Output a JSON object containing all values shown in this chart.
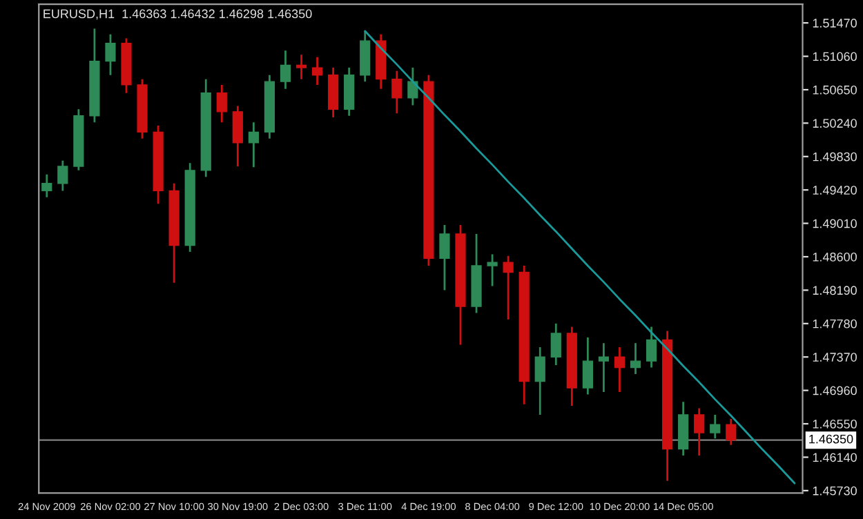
{
  "chart_data": {
    "type": "candlestick",
    "title": "EURUSD,H1  1.46363 1.46432 1.46298 1.46350",
    "categories": [
      "24 Nov 2009",
      null,
      null,
      null,
      "26 Nov 02:00",
      null,
      null,
      null,
      "27 Nov 10:00",
      null,
      null,
      null,
      "30 Nov 19:00",
      null,
      null,
      null,
      "2 Dec 03:00",
      null,
      null,
      null,
      "3 Dec 11:00",
      null,
      null,
      null,
      "4 Dec 19:00",
      null,
      null,
      null,
      "8 Dec 04:00",
      null,
      null,
      null,
      "9 Dec 12:00",
      null,
      null,
      null,
      "10 Dec 20:00",
      null,
      null,
      null,
      "14 Dec 05:00",
      null,
      null,
      null,
      null,
      null,
      null,
      null
    ],
    "ohlc": [
      [
        1.4941,
        1.4961,
        1.4933,
        1.495
      ],
      [
        1.495,
        1.4978,
        1.4941,
        1.4971
      ],
      [
        1.4971,
        1.5041,
        1.4966,
        1.5033
      ],
      [
        1.5033,
        1.514,
        1.5025,
        1.51
      ],
      [
        1.51,
        1.5133,
        1.5083,
        1.5122
      ],
      [
        1.5122,
        1.5128,
        1.5061,
        1.5071
      ],
      [
        1.5071,
        1.5078,
        1.5005,
        1.5013
      ],
      [
        1.5013,
        1.5021,
        1.4925,
        1.4941
      ],
      [
        1.4941,
        1.495,
        1.4828,
        1.4874
      ],
      [
        1.4874,
        1.4975,
        1.4866,
        1.4966
      ],
      [
        1.4966,
        1.5078,
        1.4958,
        1.5061
      ],
      [
        1.5061,
        1.5071,
        1.5025,
        1.5038
      ],
      [
        1.5038,
        1.5045,
        1.4971,
        1.5
      ],
      [
        1.5,
        1.5025,
        1.497,
        1.5013
      ],
      [
        1.5013,
        1.5083,
        1.5005,
        1.5075
      ],
      [
        1.5075,
        1.5113,
        1.5066,
        1.5095
      ],
      [
        1.5095,
        1.5108,
        1.5078,
        1.5092
      ],
      [
        1.5092,
        1.5105,
        1.5071,
        1.5083
      ],
      [
        1.5083,
        1.5092,
        1.5031,
        1.5041
      ],
      [
        1.5041,
        1.5092,
        1.5033,
        1.5083
      ],
      [
        1.5083,
        1.5137,
        1.5075,
        1.5125
      ],
      [
        1.5125,
        1.5133,
        1.5066,
        1.5078
      ],
      [
        1.5078,
        1.5088,
        1.5036,
        1.5055
      ],
      [
        1.5055,
        1.5092,
        1.5046,
        1.5075
      ],
      [
        1.5075,
        1.5083,
        1.4849,
        1.4858
      ],
      [
        1.4858,
        1.4899,
        1.4819,
        1.4888
      ],
      [
        1.4888,
        1.4899,
        1.4752,
        1.4799
      ],
      [
        1.4799,
        1.4888,
        1.4791,
        1.4849
      ],
      [
        1.4849,
        1.4863,
        1.4824,
        1.4853
      ],
      [
        1.4853,
        1.4861,
        1.4783,
        1.4841
      ],
      [
        1.4841,
        1.4849,
        1.4679,
        1.4707
      ],
      [
        1.4707,
        1.4749,
        1.4666,
        1.4737
      ],
      [
        1.4737,
        1.4778,
        1.4727,
        1.4766
      ],
      [
        1.4766,
        1.4774,
        1.4677,
        1.4699
      ],
      [
        1.4699,
        1.4761,
        1.4691,
        1.4732
      ],
      [
        1.4732,
        1.4754,
        1.4694,
        1.4737
      ],
      [
        1.4737,
        1.4749,
        1.4694,
        1.4724
      ],
      [
        1.4724,
        1.4754,
        1.4716,
        1.4732
      ],
      [
        1.4732,
        1.4774,
        1.4724,
        1.4758
      ],
      [
        1.4758,
        1.4769,
        1.4585,
        1.4624
      ],
      [
        1.4624,
        1.4682,
        1.4616,
        1.4666
      ],
      [
        1.4666,
        1.4674,
        1.4616,
        1.4644
      ],
      [
        1.4644,
        1.4666,
        1.4637,
        1.4654
      ],
      [
        1.4654,
        1.4661,
        1.4629,
        1.4635
      ],
      null,
      null,
      null,
      null
    ],
    "colors": [
      "#2e8b57",
      "#2e8b57",
      "#2e8b57",
      "#2e8b57",
      "#2e8b57",
      "#d01010",
      "#d01010",
      "#d01010",
      "#d01010",
      "#2e8b57",
      "#2e8b57",
      "#d01010",
      "#d01010",
      "#2e8b57",
      "#2e8b57",
      "#2e8b57",
      "#d01010",
      "#d01010",
      "#d01010",
      "#2e8b57",
      "#2e8b57",
      "#d01010",
      "#d01010",
      "#2e8b57",
      "#d01010",
      "#2e8b57",
      "#d01010",
      "#2e8b57",
      "#2e8b57",
      "#d01010",
      "#d01010",
      "#2e8b57",
      "#2e8b57",
      "#d01010",
      "#2e8b57",
      "#2e8b57",
      "#d01010",
      "#2e8b57",
      "#2e8b57",
      "#d01010",
      "#2e8b57",
      "#d01010",
      "#2e8b57",
      "#d01010",
      null,
      null,
      null,
      null
    ],
    "series": [
      {
        "type": "line",
        "color": "#1a9a9a",
        "values": [
          null,
          null,
          null,
          null,
          null,
          null,
          null,
          null,
          null,
          null,
          null,
          null,
          null,
          null,
          null,
          null,
          null,
          null,
          null,
          null,
          1.5137,
          1.5116,
          1.5096,
          1.5075,
          1.5055,
          1.5034,
          1.5014,
          1.4993,
          1.4973,
          1.4952,
          1.4932,
          1.4911,
          1.4891,
          1.487,
          1.4849,
          1.4829,
          1.4808,
          1.4788,
          1.4767,
          1.4747,
          1.4726,
          1.4706,
          1.4685,
          1.4665,
          1.4644,
          1.4623,
          1.4603,
          1.4582
        ]
      }
    ],
    "ref_lines": [
      {
        "axis": "y",
        "value": 1.4635,
        "label": "1.46350",
        "color": "#808080"
      }
    ],
    "ylim": [
      1.457,
      1.517
    ],
    "yticks": [
      {
        "value": 1.4573,
        "label": "1.45730"
      },
      {
        "value": 1.4614,
        "label": "1.46140"
      },
      {
        "value": 1.4655,
        "label": "1.46550"
      },
      {
        "value": 1.4696,
        "label": "1.46960"
      },
      {
        "value": 1.4737,
        "label": "1.47370"
      },
      {
        "value": 1.4778,
        "label": "1.47780"
      },
      {
        "value": 1.4819,
        "label": "1.48190"
      },
      {
        "value": 1.486,
        "label": "1.48600"
      },
      {
        "value": 1.4901,
        "label": "1.49010"
      },
      {
        "value": 1.4942,
        "label": "1.49420"
      },
      {
        "value": 1.4983,
        "label": "1.49830"
      },
      {
        "value": 1.5024,
        "label": "1.50240"
      },
      {
        "value": 1.5065,
        "label": "1.50650"
      },
      {
        "value": 1.5106,
        "label": "1.51060"
      },
      {
        "value": 1.5147,
        "label": "1.51470"
      }
    ],
    "grid": false,
    "legend": false
  }
}
